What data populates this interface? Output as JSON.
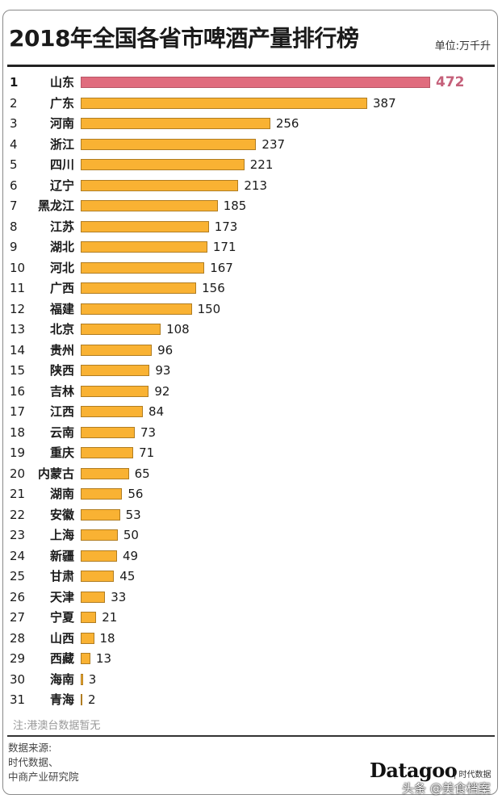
{
  "header": {
    "title": "2018年全国各省市啤酒产量排行榜",
    "unit": "单位:万千升"
  },
  "footer": {
    "note": "注:港澳台数据暂无",
    "source_lines": [
      "数据来源:",
      "时代数据、",
      "中商产业研究院"
    ],
    "logo": "Datagoo",
    "logo_sub": "| 时代数据",
    "watermark": "头条 @美食档案"
  },
  "colors": {
    "top_bar": "#e06c7e",
    "bar": "#f9b233",
    "top_value": "#c5607a"
  },
  "chart_data": {
    "type": "bar",
    "orientation": "horizontal",
    "title": "2018年全国各省市啤酒产量排行榜",
    "unit": "万千升",
    "categories": [
      "山东",
      "广东",
      "河南",
      "浙江",
      "四川",
      "辽宁",
      "黑龙江",
      "江苏",
      "湖北",
      "河北",
      "广西",
      "福建",
      "北京",
      "贵州",
      "陕西",
      "吉林",
      "江西",
      "云南",
      "重庆",
      "内蒙古",
      "湖南",
      "安徽",
      "上海",
      "新疆",
      "甘肃",
      "天津",
      "宁夏",
      "山西",
      "西藏",
      "海南",
      "青海"
    ],
    "values": [
      472,
      387,
      256,
      237,
      221,
      213,
      185,
      173,
      171,
      167,
      156,
      150,
      108,
      96,
      93,
      92,
      84,
      73,
      71,
      65,
      56,
      53,
      50,
      49,
      45,
      33,
      21,
      18,
      13,
      3,
      2
    ],
    "ranks": [
      1,
      2,
      3,
      4,
      5,
      6,
      7,
      8,
      9,
      10,
      11,
      12,
      13,
      14,
      15,
      16,
      17,
      18,
      19,
      20,
      21,
      22,
      23,
      24,
      25,
      26,
      27,
      28,
      29,
      30,
      31
    ],
    "grid": false,
    "legend": null
  }
}
